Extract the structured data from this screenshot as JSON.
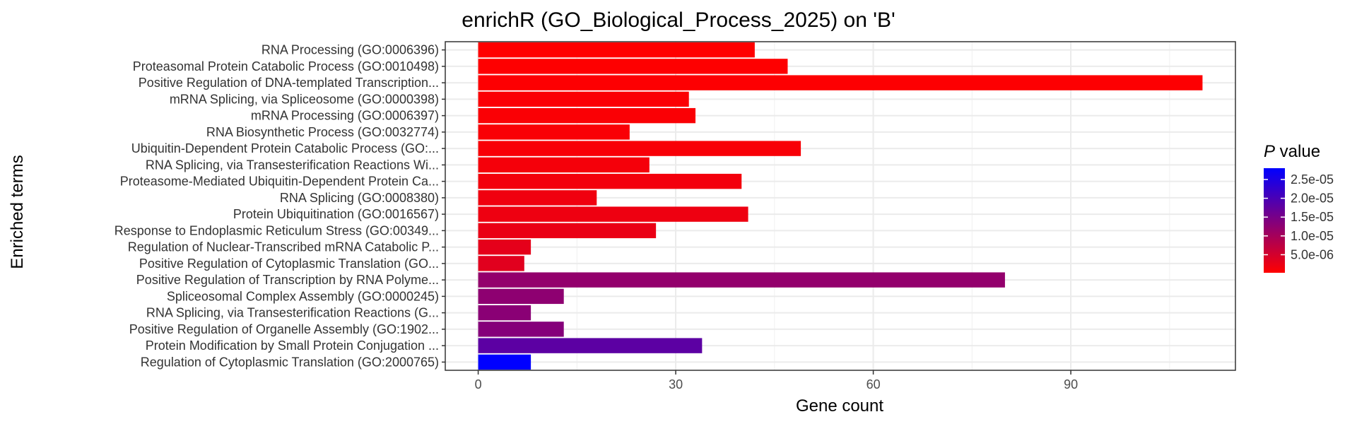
{
  "chart_data": {
    "type": "bar",
    "orientation": "horizontal",
    "title": "enrichR (GO_Biological_Process_2025) on 'B'",
    "xlabel": "Gene count",
    "ylabel": "Enriched terms",
    "xlim": [
      -5,
      115
    ],
    "xticks": [
      0,
      30,
      60,
      90
    ],
    "grid": true,
    "legend_position": "right",
    "legend": {
      "title_italic": "P",
      "title_rest": " value",
      "labels": [
        "2.5e-05",
        "2.0e-05",
        "1.5e-05",
        "1.0e-05",
        "5.0e-06"
      ],
      "label_values": [
        2.5e-05,
        2e-05,
        1.5e-05,
        1e-05,
        5e-06
      ],
      "range": [
        2e-07,
        2.8e-05
      ],
      "color_low": "#ff0000",
      "color_high": "#0000ff"
    },
    "categories": [
      "RNA Processing (GO:0006396)",
      "Proteasomal Protein Catabolic Process (GO:0010498)",
      "Positive Regulation of DNA-templated Transcription...",
      "mRNA Splicing, via Spliceosome (GO:0000398)",
      "mRNA Processing (GO:0006397)",
      "RNA Biosynthetic Process (GO:0032774)",
      "Ubiquitin-Dependent Protein Catabolic Process (GO:...",
      "RNA Splicing, via Transesterification Reactions Wi...",
      "Proteasome-Mediated Ubiquitin-Dependent Protein Ca...",
      "RNA Splicing (GO:0008380)",
      "Protein Ubiquitination (GO:0016567)",
      "Response to Endoplasmic Reticulum Stress (GO:00349...",
      "Regulation of Nuclear-Transcribed mRNA Catabolic P...",
      "Positive Regulation of Cytoplasmic Translation (GO...",
      "Positive Regulation of Transcription by RNA Polyme...",
      "Spliceosomal Complex Assembly (GO:0000245)",
      "RNA Splicing, via Transesterification Reactions (G...",
      "Positive Regulation of Organelle Assembly (GO:1902...",
      "Protein Modification by Small Protein Conjugation ...",
      "Regulation of Cytoplasmic Translation (GO:2000765)"
    ],
    "values": [
      42,
      47,
      110,
      32,
      33,
      23,
      49,
      26,
      40,
      18,
      41,
      27,
      8,
      7,
      80,
      13,
      8,
      13,
      34,
      8
    ],
    "p_values": [
      2e-07,
      3e-07,
      4e-07,
      6e-07,
      7e-07,
      8e-07,
      1e-06,
      1.3e-06,
      1.5e-06,
      1.8e-06,
      2e-06,
      2.5e-06,
      3e-06,
      3.5e-06,
      1.2e-05,
      1.25e-05,
      1.3e-05,
      1.35e-05,
      1.8e-05,
      2.8e-05
    ]
  }
}
